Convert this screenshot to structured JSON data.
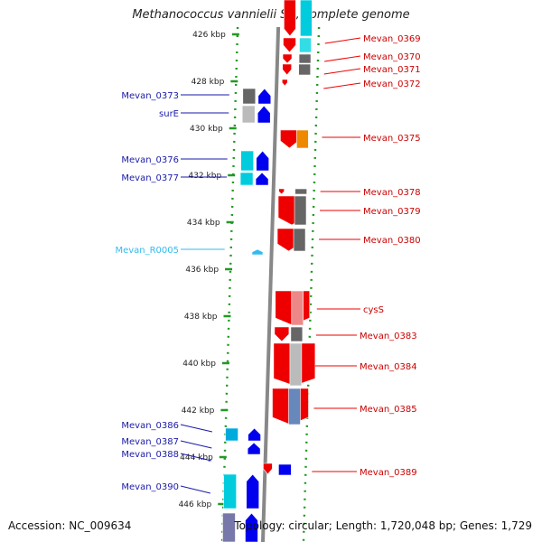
{
  "title": "Methanococcus vannielii SB, complete genome",
  "accession": "Accession: NC_009634",
  "summary": "Topology: circular; Length: 1,720,048 bp; Genes: 1,729",
  "colors": {
    "reverse_gene": "#0000ee",
    "forward_gene": "#ee0000",
    "rna_gene": "#33bbee",
    "tick": "#229922",
    "backbone": "#888888"
  },
  "ruler": [
    {
      "label": "426 kbp"
    },
    {
      "label": "428 kbp"
    },
    {
      "label": "430 kbp"
    },
    {
      "label": "432 kbp"
    },
    {
      "label": "434 kbp"
    },
    {
      "label": "436 kbp"
    },
    {
      "label": "438 kbp"
    },
    {
      "label": "440 kbp"
    },
    {
      "label": "442 kbp"
    },
    {
      "label": "444 kbp"
    },
    {
      "label": "446 kbp"
    }
  ],
  "left_labels": [
    {
      "text": "Mevan_0373",
      "color": "#1a1aaa"
    },
    {
      "text": "surE",
      "color": "#1a1aaa"
    },
    {
      "text": "Mevan_0376",
      "color": "#1a1aaa"
    },
    {
      "text": "Mevan_0377",
      "color": "#1a1aaa"
    },
    {
      "text": "Mevan_R0005",
      "color": "#33bbee"
    },
    {
      "text": "Mevan_0386",
      "color": "#1a1aaa"
    },
    {
      "text": "Mevan_0387",
      "color": "#1a1aaa"
    },
    {
      "text": "Mevan_0388",
      "color": "#1a1aaa"
    },
    {
      "text": "Mevan_0390",
      "color": "#1a1aaa"
    }
  ],
  "right_labels": [
    {
      "text": "Mevan_0369"
    },
    {
      "text": "Mevan_0370"
    },
    {
      "text": "Mevan_0371"
    },
    {
      "text": "Mevan_0372"
    },
    {
      "text": "Mevan_0375"
    },
    {
      "text": "Mevan_0378"
    },
    {
      "text": "Mevan_0379"
    },
    {
      "text": "Mevan_0380"
    },
    {
      "text": "cysS"
    },
    {
      "text": "Mevan_0383"
    },
    {
      "text": "Mevan_0384"
    },
    {
      "text": "Mevan_0385"
    },
    {
      "text": "Mevan_0389"
    }
  ]
}
